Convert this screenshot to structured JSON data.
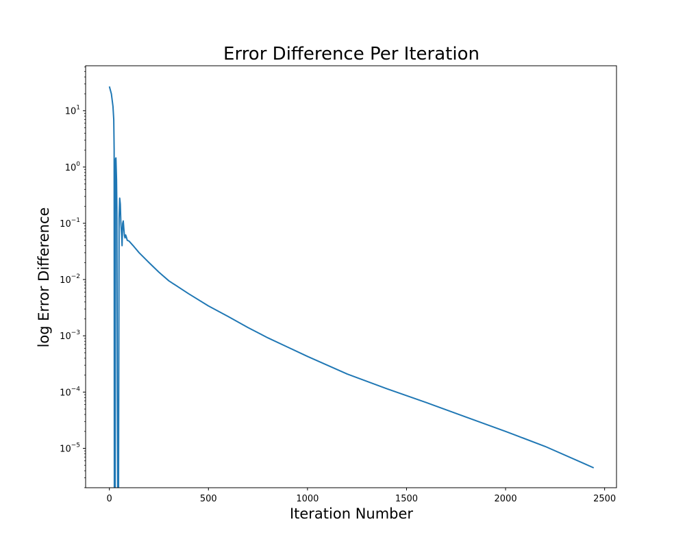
{
  "chart_data": {
    "type": "line",
    "title": "Error Difference Per Iteration",
    "xlabel": "Iteration Number",
    "ylabel": "log Error Difference",
    "xlim": [
      -120,
      2560
    ],
    "ylim_log10": [
      -5.7,
      1.8
    ],
    "yscale": "log",
    "grid": false,
    "color": "#1f77b4",
    "x_ticks": [
      0,
      500,
      1000,
      1500,
      2000,
      2500
    ],
    "x_tick_labels": [
      "0",
      "500",
      "1000",
      "1500",
      "2000",
      "2500"
    ],
    "y_ticks": [
      {
        "base": "10",
        "exp": "1",
        "value": 10
      },
      {
        "base": "10",
        "exp": "0",
        "value": 1
      },
      {
        "base": "10",
        "exp": "−1",
        "value": 0.1
      },
      {
        "base": "10",
        "exp": "−2",
        "value": 0.01
      },
      {
        "base": "10",
        "exp": "−3",
        "value": 0.001
      },
      {
        "base": "10",
        "exp": "−4",
        "value": 0.0001
      },
      {
        "base": "10",
        "exp": "−5",
        "value": 1e-05
      }
    ],
    "series": [
      {
        "points": [
          [
            0,
            27
          ],
          [
            10,
            20
          ],
          [
            18,
            12
          ],
          [
            22,
            7
          ],
          [
            24,
            2
          ],
          [
            25,
            1e-06
          ],
          [
            29,
            1e-06
          ],
          [
            31,
            1.4
          ],
          [
            33,
            1.45
          ],
          [
            36,
            0.6
          ],
          [
            38,
            0.15
          ],
          [
            40,
            0.0001
          ],
          [
            42,
            1e-06
          ],
          [
            46,
            1e-06
          ],
          [
            49,
            0.12
          ],
          [
            52,
            0.28
          ],
          [
            55,
            0.22
          ],
          [
            58,
            0.1
          ],
          [
            62,
            0.06
          ],
          [
            64,
            0.04
          ],
          [
            67,
            0.1
          ],
          [
            70,
            0.11
          ],
          [
            73,
            0.08
          ],
          [
            76,
            0.06
          ],
          [
            79,
            0.055
          ],
          [
            82,
            0.062
          ],
          [
            85,
            0.058
          ],
          [
            90,
            0.05
          ],
          [
            100,
            0.048
          ],
          [
            120,
            0.04
          ],
          [
            150,
            0.03
          ],
          [
            200,
            0.02
          ],
          [
            250,
            0.0135
          ],
          [
            300,
            0.0095
          ],
          [
            400,
            0.0056
          ],
          [
            500,
            0.0034
          ],
          [
            600,
            0.0022
          ],
          [
            700,
            0.0014
          ],
          [
            800,
            0.00092
          ],
          [
            900,
            0.00063
          ],
          [
            1000,
            0.00043
          ],
          [
            1200,
            0.00021
          ],
          [
            1400,
            0.000115
          ],
          [
            1600,
            6.5e-05
          ],
          [
            1800,
            3.6e-05
          ],
          [
            2000,
            2e-05
          ],
          [
            2200,
            1.08e-05
          ],
          [
            2400,
            5.3e-06
          ],
          [
            2445,
            4.5e-06
          ]
        ]
      }
    ]
  }
}
